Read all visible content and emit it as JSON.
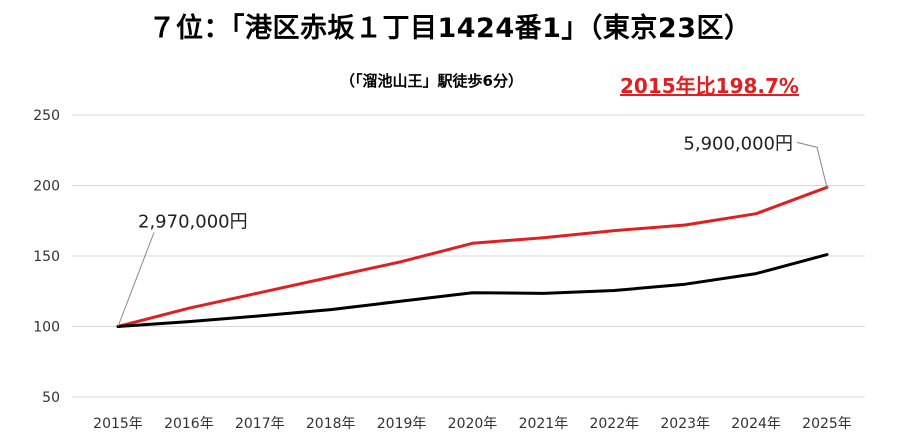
{
  "chart_data": {
    "type": "line",
    "title": "７位：「港区赤坂１丁目1424番1」（東京23区）",
    "subtitle": "（「溜池山王」駅徒歩6分）",
    "highlight_note": "2015年比198.7%",
    "categories": [
      "2015年",
      "2016年",
      "2017年",
      "2018年",
      "2019年",
      "2020年",
      "2021年",
      "2022年",
      "2023年",
      "2024年",
      "2025年"
    ],
    "series": [
      {
        "color": "#e02020",
        "values": [
          100,
          113,
          124,
          135,
          146,
          159,
          163,
          168,
          172,
          180,
          198.7
        ]
      },
      {
        "color": "#000000",
        "values": [
          100,
          103.5,
          107.5,
          112,
          118,
          124,
          123.5,
          125.5,
          130,
          137.5,
          151
        ]
      }
    ],
    "ylim": [
      50,
      250
    ],
    "yticks": [
      50,
      100,
      150,
      200,
      250
    ],
    "grid": true,
    "annotations": [
      {
        "text": "2,970,000円",
        "series": 0,
        "index": 0
      },
      {
        "text": "5,900,000円",
        "series": 0,
        "index": 10
      }
    ]
  }
}
